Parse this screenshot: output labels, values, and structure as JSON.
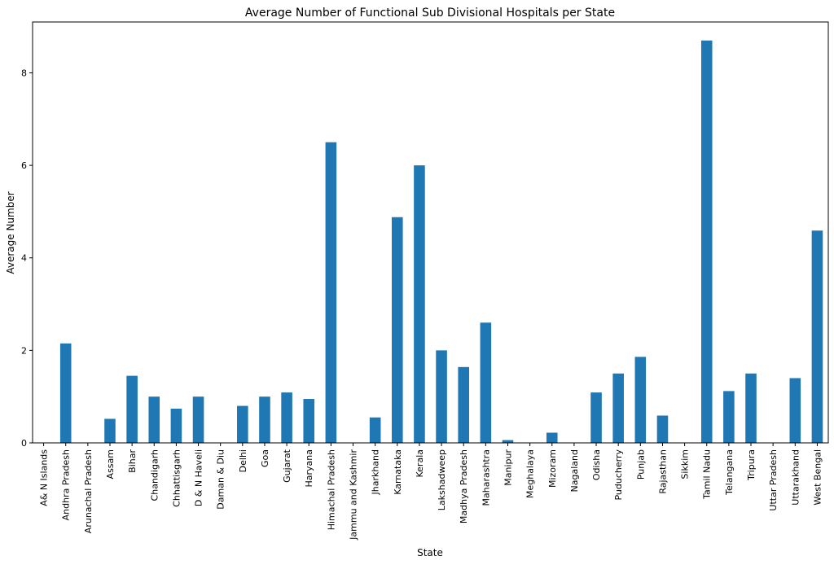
{
  "chart_data": {
    "type": "bar",
    "title": "Average Number of Functional Sub Divisional Hospitals per State",
    "xlabel": "State",
    "ylabel": "Average Number",
    "ylim": [
      0,
      9.1
    ],
    "yticks": [
      0,
      2,
      4,
      6,
      8
    ],
    "grid": false,
    "color": "#1f77b4",
    "categories": [
      "A& N Islands",
      "Andhra Pradesh",
      "Arunachal Pradesh",
      "Assam",
      "Bihar",
      "Chandigarh",
      "Chhattisgarh",
      "D & N Haveli",
      "Daman & Diu",
      "Delhi",
      "Goa",
      "Gujarat",
      "Haryana",
      "Himachal Pradesh",
      "Jammu and Kashmir",
      "Jharkhand",
      "Karnataka",
      "Kerala",
      "Lakshadweep",
      "Madhya Pradesh",
      "Maharashtra",
      "Manipur",
      "Meghalaya",
      "Mizoram",
      "Nagaland",
      "Odisha",
      "Puducherry",
      "Punjab",
      "Rajasthan",
      "Sikkim",
      "Tamil Nadu",
      "Telangana",
      "Tripura",
      "Uttar Pradesh",
      "Uttarakhand",
      "West Bengal"
    ],
    "values": [
      0,
      2.15,
      0,
      0.52,
      1.45,
      1.0,
      0.74,
      1.0,
      0,
      0.8,
      1.0,
      1.09,
      0.95,
      6.5,
      0,
      0.55,
      4.88,
      6.0,
      2.0,
      1.64,
      2.6,
      0.06,
      0,
      0.22,
      0,
      1.09,
      1.5,
      1.86,
      0.59,
      0,
      8.7,
      1.12,
      1.5,
      0,
      1.4,
      4.59
    ]
  }
}
